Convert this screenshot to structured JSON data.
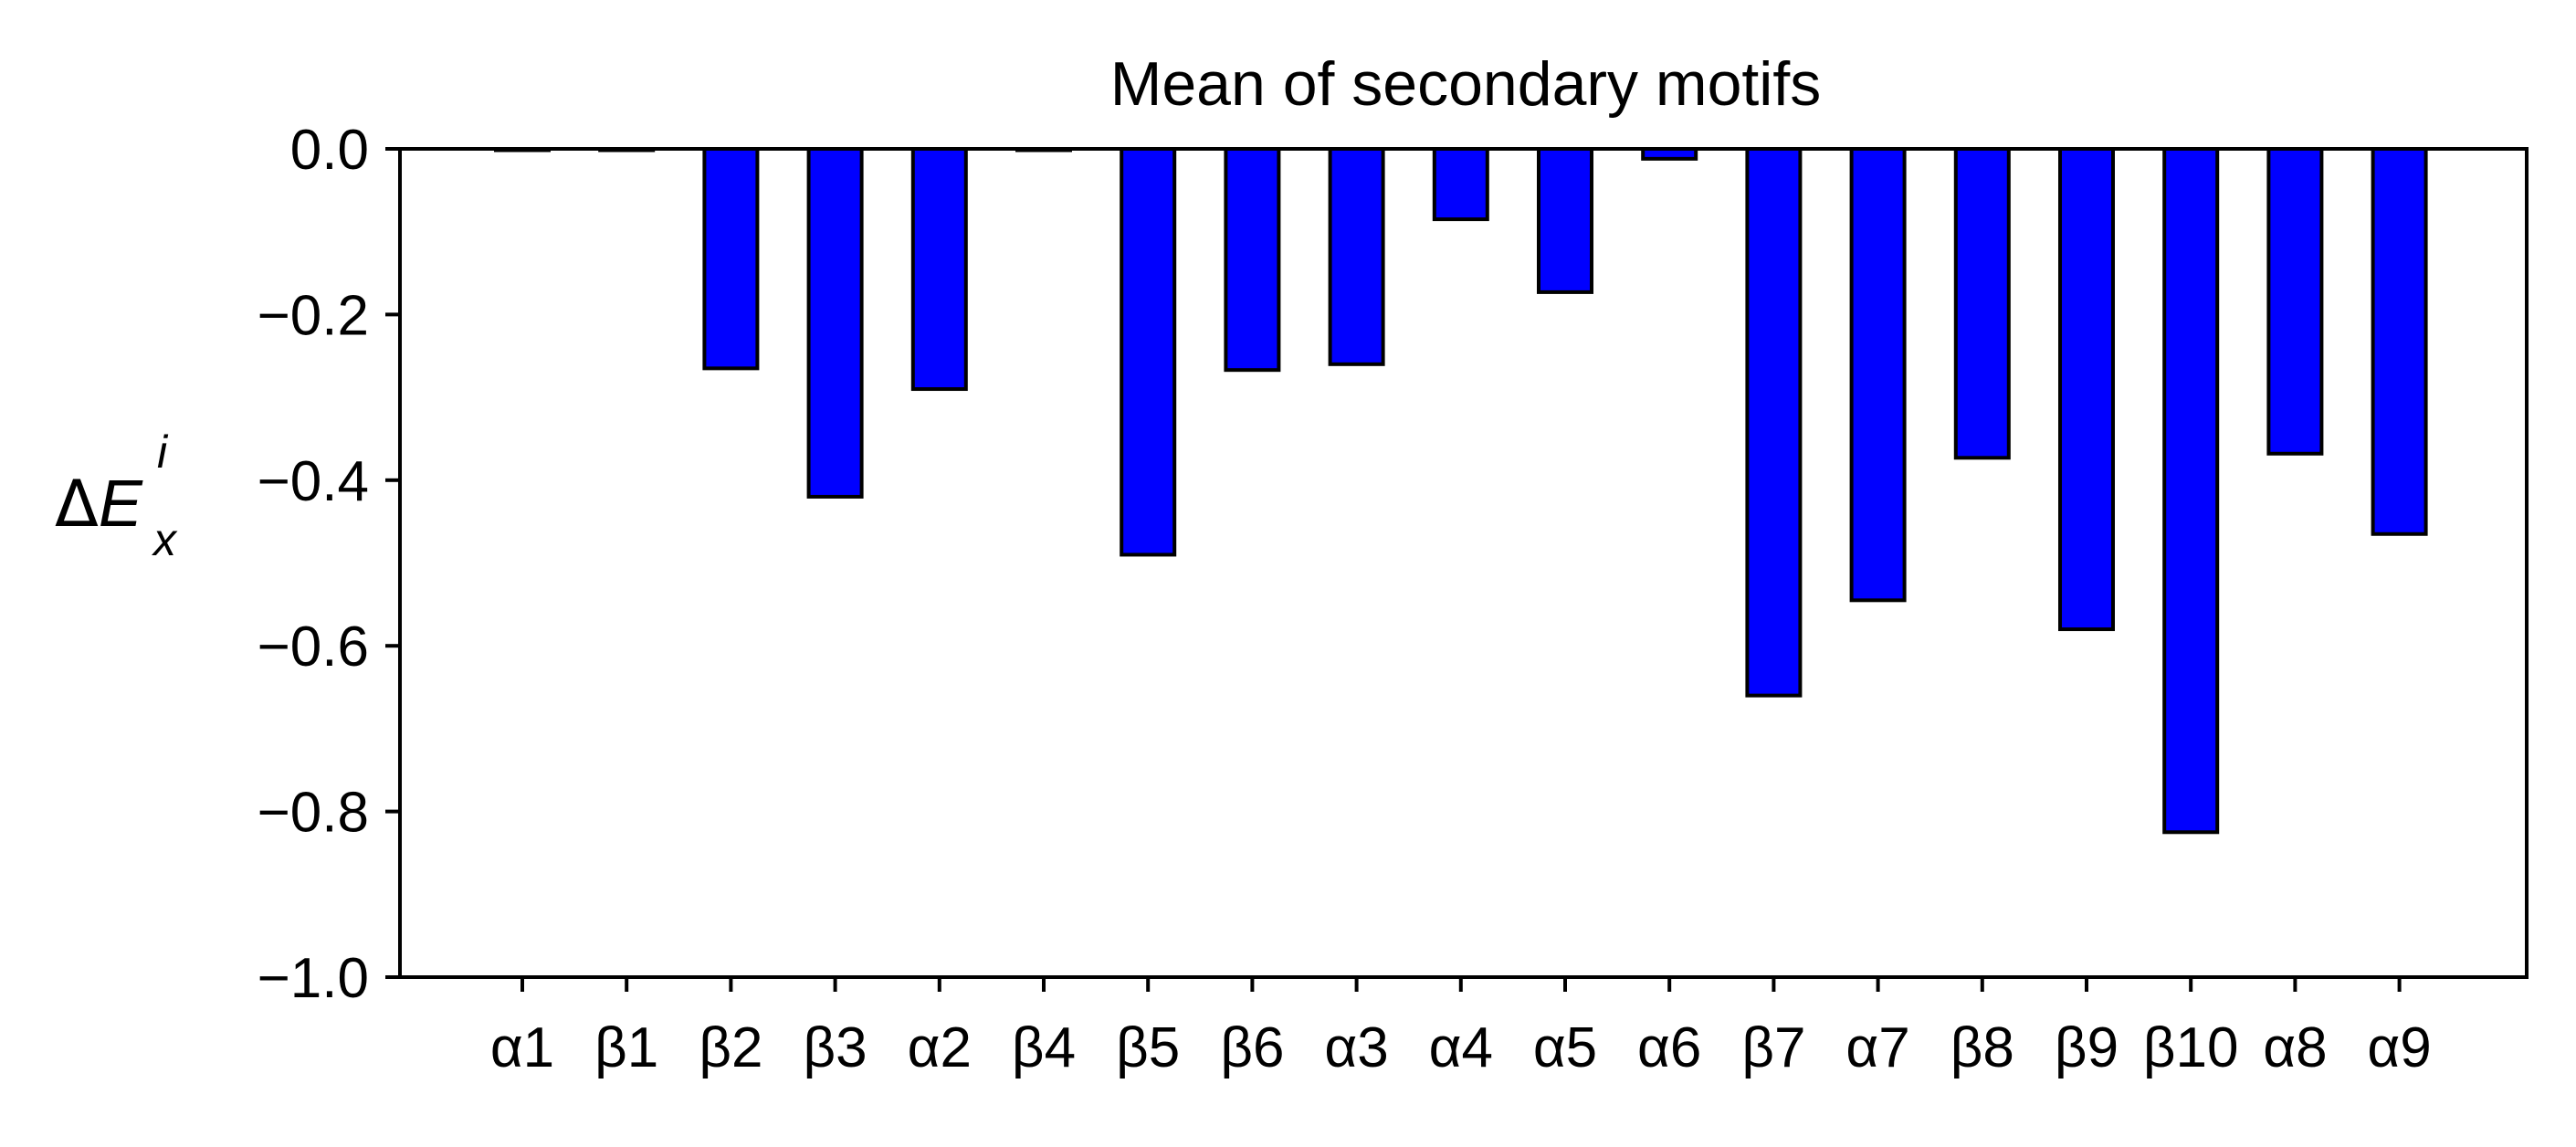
{
  "chart_data": {
    "type": "bar",
    "title": "Mean of secondary motifs",
    "ylabel": {
      "prefix": "Δ",
      "main": "E",
      "superscript": "i",
      "subscript": "x"
    },
    "xlabel": "",
    "categories": [
      "α1",
      "β1",
      "β2",
      "β3",
      "α2",
      "β4",
      "β5",
      "β6",
      "α3",
      "α4",
      "α5",
      "α6",
      "β7",
      "α7",
      "β8",
      "β9",
      "β10",
      "α8",
      "α9"
    ],
    "values": [
      0.0,
      0.0,
      -0.265,
      -0.42,
      -0.29,
      0.0,
      -0.49,
      -0.267,
      -0.26,
      -0.085,
      -0.173,
      -0.012,
      -0.66,
      -0.545,
      -0.373,
      -0.58,
      -0.825,
      -0.368,
      -0.465
    ],
    "ylim": [
      -1.0,
      0.0
    ],
    "yticks": [
      0.0,
      -0.2,
      -0.4,
      -0.6,
      -0.8,
      -1.0
    ],
    "ytick_labels": [
      "0.0",
      "−0.2",
      "−0.4",
      "−0.6",
      "−0.8",
      "−1.0"
    ],
    "grid": false,
    "legend": "none",
    "colors": {
      "bar_fill": "#0000ff",
      "bar_edge": "#000000",
      "axis": "#000000",
      "background": "#ffffff"
    }
  }
}
